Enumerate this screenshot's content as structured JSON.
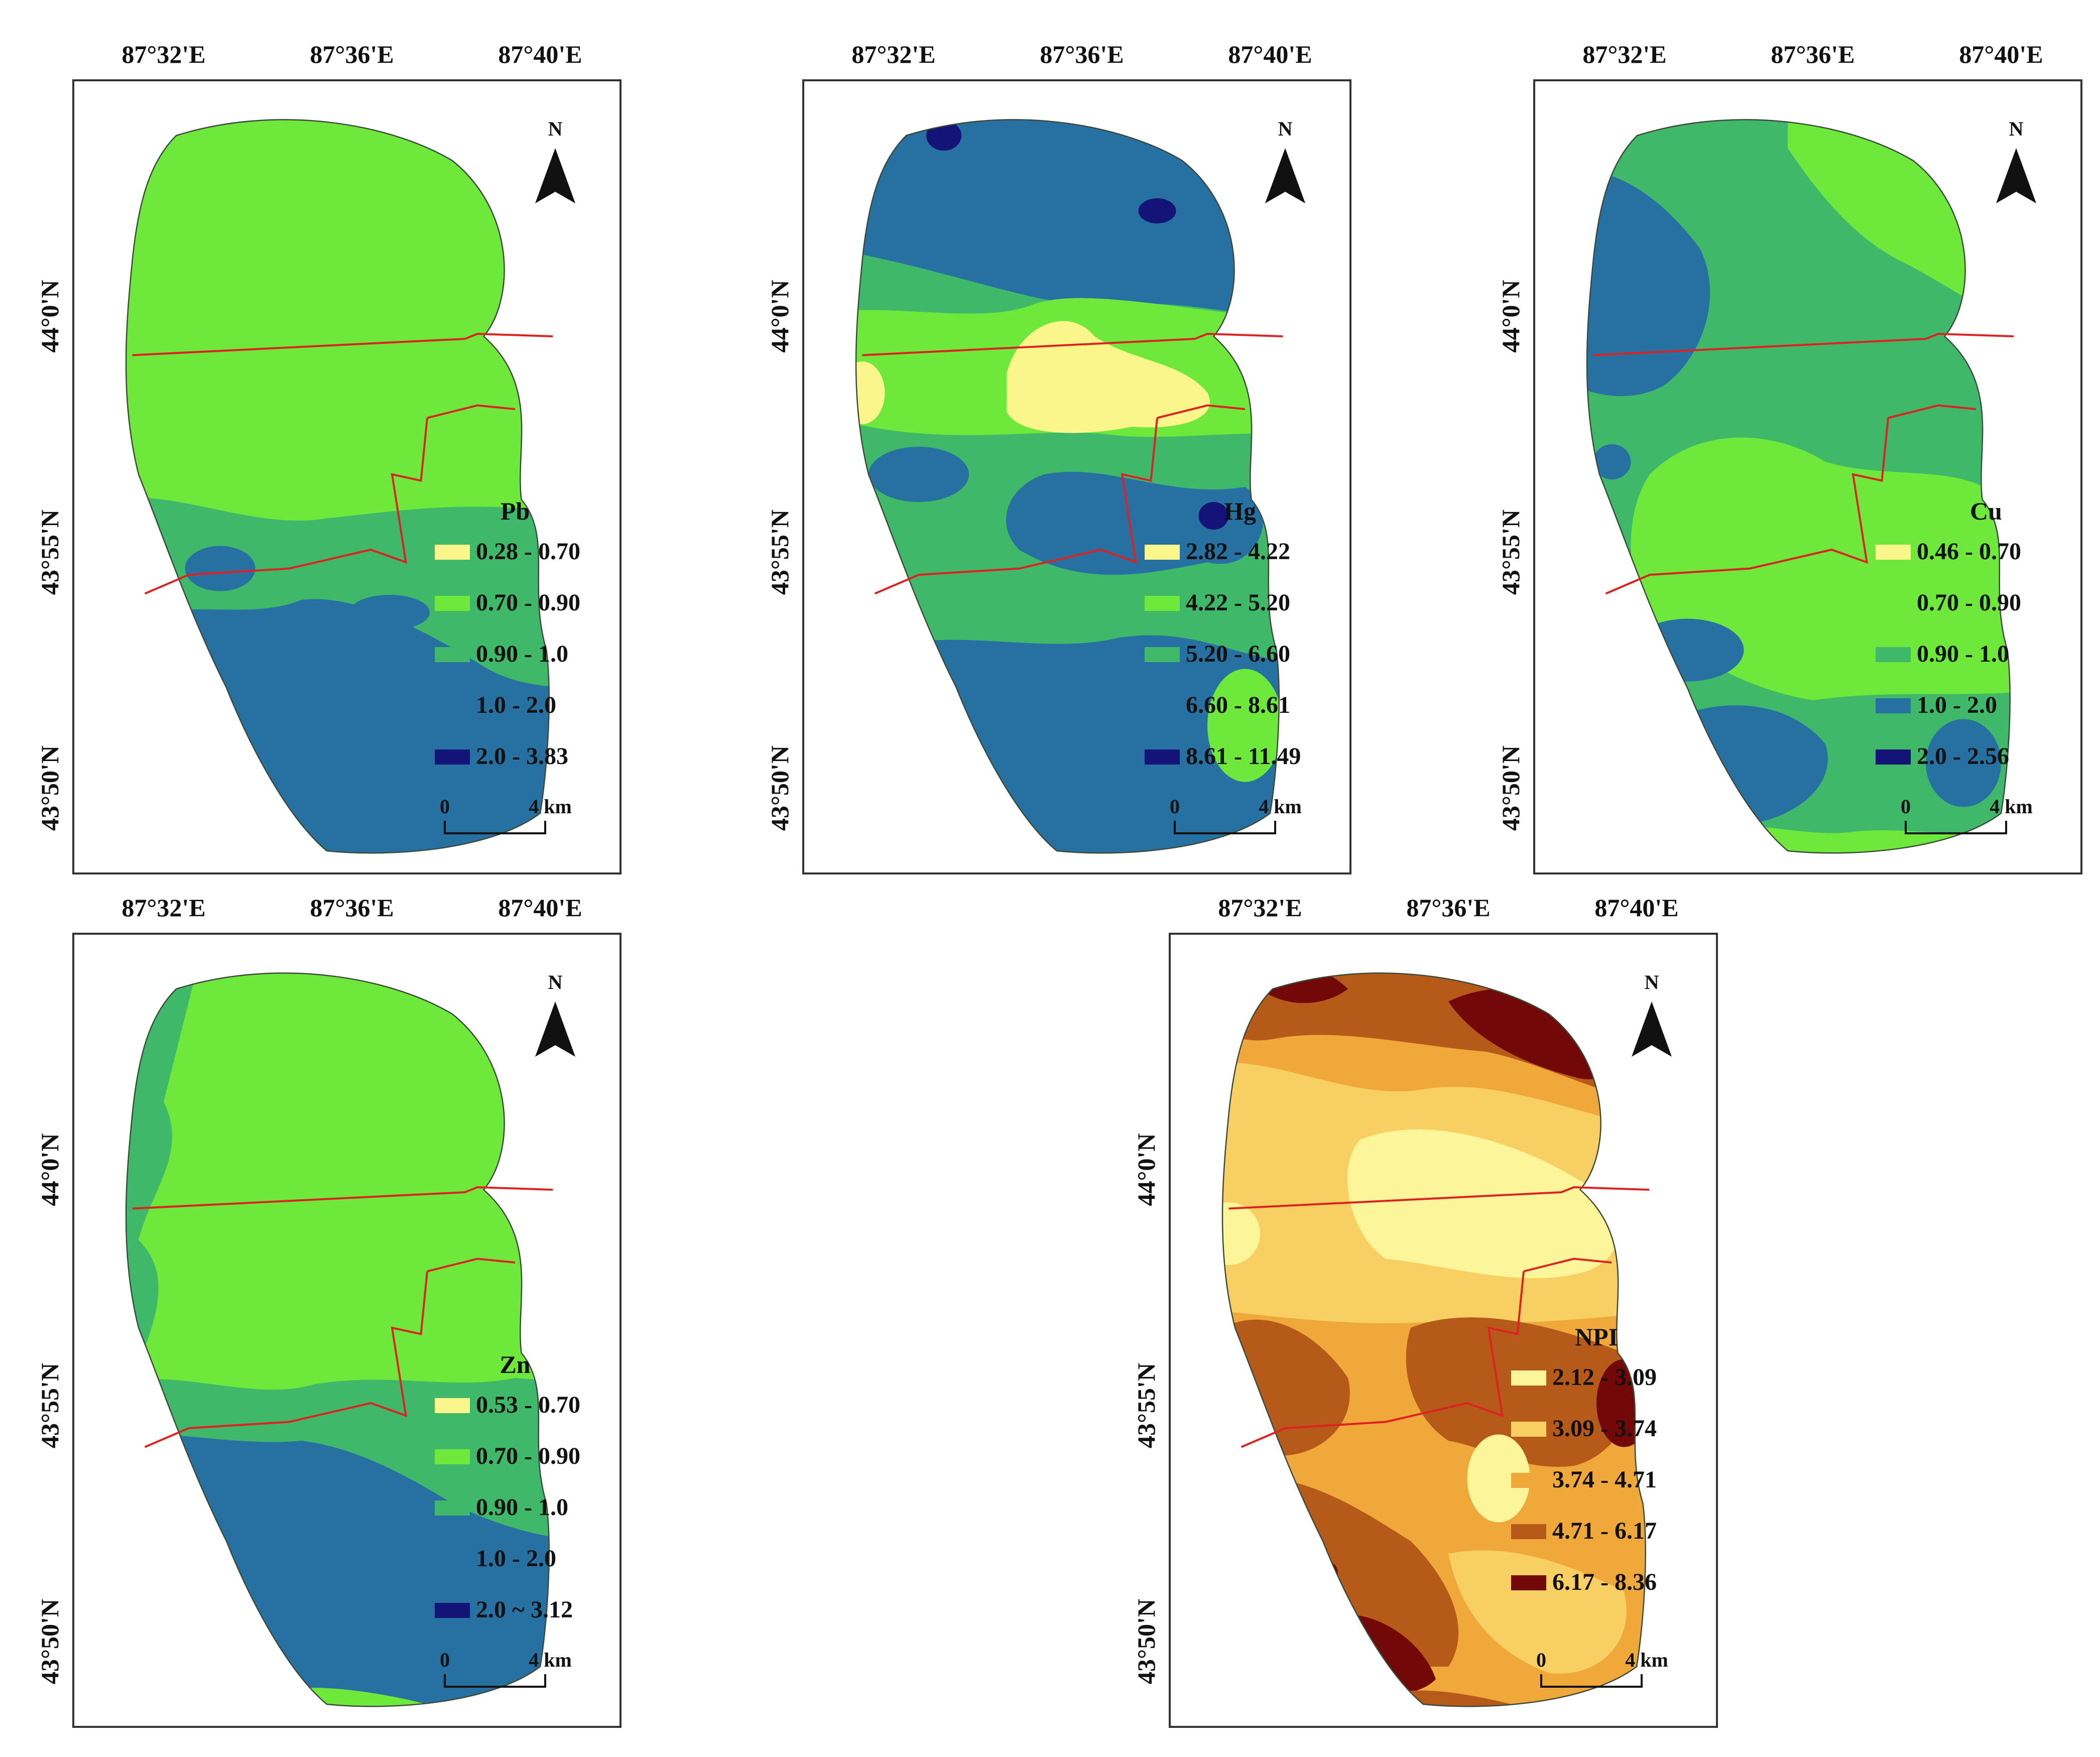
{
  "north_label": "N",
  "scale_bar": {
    "start": "0",
    "end": "4 km"
  },
  "lon_ticks": [
    "87°32'E",
    "87°36'E",
    "87°40'E"
  ],
  "lat_ticks": [
    "44°0'N",
    "43°55'N",
    "43°50'N"
  ],
  "colors": {
    "boundary_line": "#dd2222",
    "frame": "#333333"
  },
  "panels": [
    {
      "id": "pb",
      "title": "Pb",
      "legend": [
        {
          "label": "0.28 - 0.70",
          "color": "#fbf68c"
        },
        {
          "label": "0.70 - 0.90",
          "color": "#6ee83a"
        },
        {
          "label": "0.90 - 1.0",
          "color": "#3fb86a"
        },
        {
          "label": "1.0 - 2.0",
          "color": "#2670a2"
        },
        {
          "label": "2.0 - 3.83",
          "color": "#141478"
        }
      ]
    },
    {
      "id": "hg",
      "title": "Hg",
      "legend": [
        {
          "label": "2.82 - 4.22",
          "color": "#fbf68c"
        },
        {
          "label": "4.22 - 5.20",
          "color": "#6ee83a"
        },
        {
          "label": "5.20 - 6.60",
          "color": "#3fb86a"
        },
        {
          "label": "6.60 - 8.61",
          "color": "#2670a2"
        },
        {
          "label": "8.61 - 11.49",
          "color": "#141478"
        }
      ]
    },
    {
      "id": "cu",
      "title": "Cu",
      "legend": [
        {
          "label": "0.46 - 0.70",
          "color": "#fbf68c"
        },
        {
          "label": "0.70 - 0.90",
          "color": "#6ee83a"
        },
        {
          "label": "0.90 - 1.0",
          "color": "#3fb86a"
        },
        {
          "label": "1.0 - 2.0",
          "color": "#2670a2"
        },
        {
          "label": "2.0 - 2.56",
          "color": "#141478"
        }
      ]
    },
    {
      "id": "zn",
      "title": "Zn",
      "legend": [
        {
          "label": "0.53 - 0.70",
          "color": "#fbf68c"
        },
        {
          "label": "0.70 - 0.90",
          "color": "#6ee83a"
        },
        {
          "label": "0.90 - 1.0",
          "color": "#3fb86a"
        },
        {
          "label": "1.0 - 2.0",
          "color": "#2670a2"
        },
        {
          "label": "2.0 ~ 3.12",
          "color": "#141478"
        }
      ]
    },
    {
      "id": "npi",
      "title": "NPI",
      "legend": [
        {
          "label": "2.12 - 3.09",
          "color": "#fdf59a"
        },
        {
          "label": "3.09 - 3.74",
          "color": "#f8cf62"
        },
        {
          "label": "3.74 - 4.71",
          "color": "#f0a83a"
        },
        {
          "label": "4.71 - 6.17",
          "color": "#b55a18"
        },
        {
          "label": "6.17 - 8.36",
          "color": "#720808"
        }
      ]
    }
  ]
}
